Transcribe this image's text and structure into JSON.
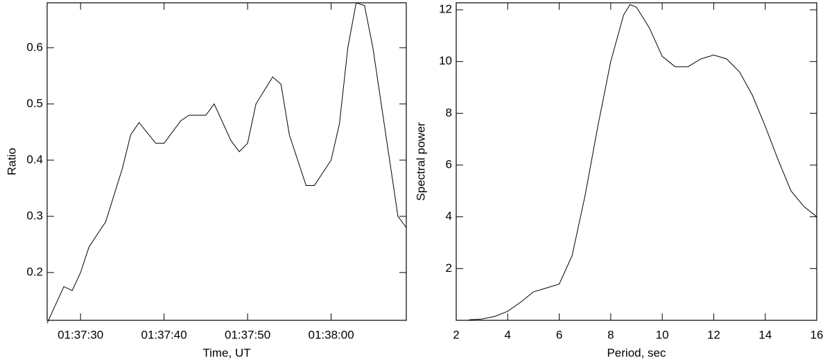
{
  "chart_data": [
    {
      "type": "line",
      "x_label": "Time, UT",
      "y_label": "Ratio",
      "x": [
        "01:37:26",
        "01:37:28",
        "01:37:29",
        "01:37:30",
        "01:37:31",
        "01:37:32",
        "01:37:33",
        "01:37:35",
        "01:37:36",
        "01:37:37",
        "01:37:39",
        "01:37:40",
        "01:37:41",
        "01:37:42",
        "01:37:43",
        "01:37:45",
        "01:37:46",
        "01:37:48",
        "01:37:49",
        "01:37:50",
        "01:37:51",
        "01:37:53",
        "01:37:54",
        "01:37:55",
        "01:37:57",
        "01:37:58",
        "01:38:00",
        "01:38:01",
        "01:38:02",
        "01:38:03",
        "01:38:04",
        "01:38:05",
        "01:38:07",
        "01:38:08",
        "01:38:09"
      ],
      "series": [
        {
          "color": "#000000",
          "values": [
            0.11,
            0.175,
            0.168,
            0.2,
            0.245,
            0.268,
            0.29,
            0.385,
            0.445,
            0.467,
            0.43,
            0.43,
            0.45,
            0.47,
            0.48,
            0.48,
            0.5,
            0.435,
            0.415,
            0.43,
            0.5,
            0.548,
            0.535,
            0.445,
            0.355,
            0.355,
            0.4,
            0.465,
            0.6,
            0.68,
            0.675,
            0.6,
            0.4,
            0.3,
            0.28
          ]
        }
      ],
      "xlim": [
        "01:37:26",
        "01:38:09"
      ],
      "xticks": [
        "01:37:30",
        "01:37:40",
        "01:37:50",
        "01:38:00"
      ],
      "ylim": [
        0.115,
        0.68
      ],
      "yticks": [
        0.2,
        0.3,
        0.4,
        0.5,
        0.6
      ]
    },
    {
      "type": "line",
      "x_label": "Period, sec",
      "y_label": "Spectral power",
      "x": [
        2.5,
        3,
        3.5,
        4,
        4.5,
        5,
        5.5,
        6,
        6.5,
        7,
        7.5,
        8,
        8.5,
        8.75,
        9,
        9.5,
        10,
        10.5,
        11,
        11.5,
        12,
        12.5,
        13,
        13.5,
        14,
        14.5,
        15,
        15.5,
        16
      ],
      "series": [
        {
          "color": "#000000",
          "values": [
            0.02,
            0.05,
            0.15,
            0.35,
            0.7,
            1.1,
            1.25,
            1.4,
            2.5,
            4.8,
            7.5,
            10,
            11.8,
            12.2,
            12.1,
            11.3,
            10.2,
            9.8,
            9.8,
            10.1,
            10.25,
            10.1,
            9.6,
            8.7,
            7.5,
            6.2,
            5,
            4.4,
            4.0
          ]
        }
      ],
      "xlim": [
        2,
        16
      ],
      "xticks": [
        2,
        4,
        6,
        8,
        10,
        12,
        14,
        16
      ],
      "ylim": [
        0,
        12.27
      ],
      "yticks": [
        2,
        4,
        6,
        8,
        10,
        12
      ]
    }
  ]
}
